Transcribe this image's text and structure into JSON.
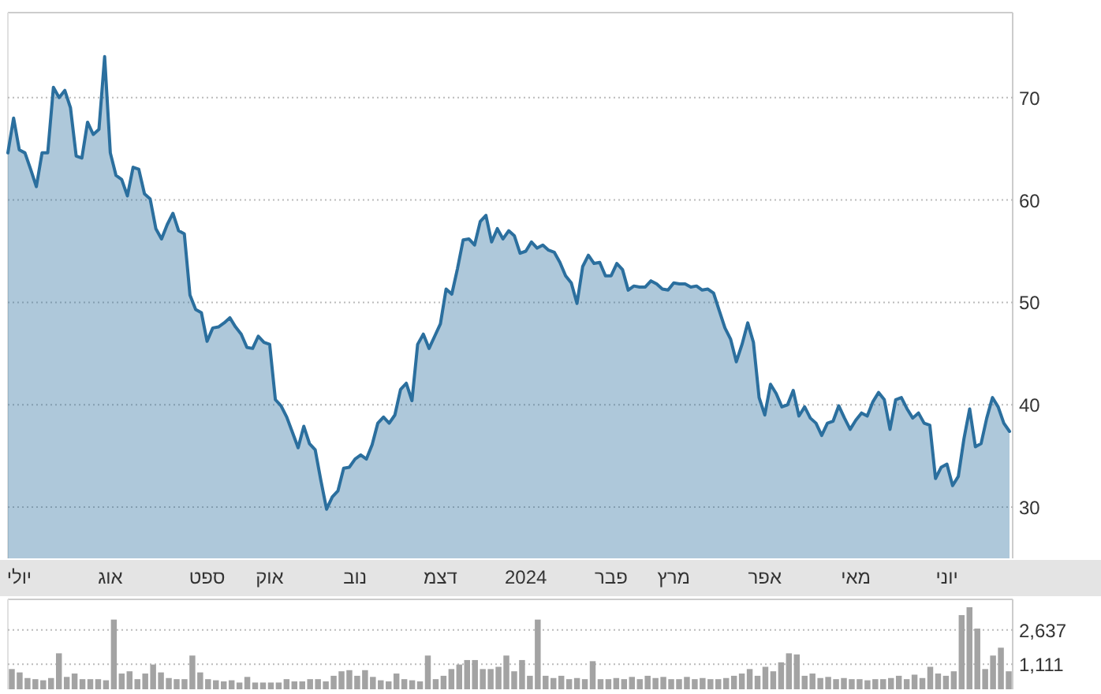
{
  "chart_data": [
    {
      "type": "area",
      "categories": [
        null,
        null,
        "יולי",
        null,
        null,
        null,
        null,
        null,
        null,
        null,
        null,
        null,
        null,
        null,
        null,
        null,
        null,
        null,
        "אוג",
        null,
        null,
        null,
        null,
        null,
        null,
        null,
        null,
        null,
        null,
        null,
        null,
        null,
        null,
        null,
        null,
        "ספט",
        null,
        null,
        null,
        null,
        null,
        null,
        null,
        null,
        null,
        null,
        "אוק",
        null,
        null,
        null,
        null,
        null,
        null,
        null,
        null,
        null,
        null,
        null,
        null,
        null,
        null,
        "נוב",
        null,
        null,
        null,
        null,
        null,
        null,
        null,
        null,
        null,
        null,
        null,
        null,
        null,
        null,
        "דצמ",
        null,
        null,
        null,
        null,
        null,
        null,
        null,
        null,
        null,
        null,
        null,
        null,
        null,
        null,
        "2024",
        null,
        null,
        null,
        null,
        null,
        null,
        null,
        null,
        null,
        null,
        null,
        null,
        null,
        null,
        "פבר",
        null,
        null,
        null,
        null,
        null,
        null,
        null,
        null,
        null,
        null,
        "מרץ",
        null,
        null,
        null,
        null,
        null,
        null,
        null,
        null,
        null,
        null,
        null,
        null,
        null,
        null,
        null,
        "אפר",
        null,
        null,
        null,
        null,
        null,
        null,
        null,
        null,
        null,
        null,
        null,
        null,
        null,
        null,
        null,
        "מאי",
        null,
        null,
        null,
        null,
        null,
        null,
        null,
        null,
        null,
        null,
        null,
        null,
        null,
        null,
        null,
        "יוני",
        null,
        null,
        null,
        null,
        null,
        null,
        null,
        null,
        null,
        null,
        null
      ],
      "series": [
        {
          "color": "#2b6f9e",
          "values": [
            64.6,
            68.0,
            64.9,
            64.6,
            63.0,
            61.3,
            64.6,
            64.6,
            71.0,
            70.0,
            70.7,
            69.0,
            64.3,
            64.1,
            67.6,
            66.4,
            66.9,
            74.0,
            64.6,
            62.4,
            62.0,
            60.4,
            63.2,
            63.0,
            60.6,
            60.1,
            57.2,
            56.2,
            57.6,
            58.7,
            57.0,
            56.7,
            50.7,
            49.3,
            49.0,
            46.2,
            47.5,
            47.6,
            48.0,
            48.5,
            47.6,
            46.9,
            45.6,
            45.5,
            46.7,
            46.1,
            45.9,
            40.5,
            39.9,
            38.8,
            37.3,
            35.8,
            37.9,
            36.2,
            35.6,
            32.6,
            29.8,
            31.0,
            31.6,
            33.8,
            33.9,
            34.7,
            35.1,
            34.7,
            36.1,
            38.2,
            38.8,
            38.2,
            39.0,
            41.5,
            42.1,
            40.4,
            45.9,
            46.9,
            45.5,
            46.7,
            47.9,
            51.3,
            50.8,
            53.3,
            56.1,
            56.2,
            55.6,
            57.9,
            58.5,
            55.9,
            57.2,
            56.2,
            57.0,
            56.5,
            54.8,
            55.0,
            55.9,
            55.3,
            55.6,
            55.1,
            54.9,
            53.9,
            52.6,
            51.9,
            49.9,
            53.5,
            54.6,
            53.8,
            53.9,
            52.6,
            52.6,
            53.8,
            53.2,
            51.2,
            51.6,
            51.5,
            51.5,
            52.1,
            51.8,
            51.3,
            51.2,
            51.9,
            51.8,
            51.8,
            51.5,
            51.6,
            51.2,
            51.3,
            50.9,
            49.2,
            47.5,
            46.4,
            44.2,
            45.9,
            48.0,
            46.1,
            40.7,
            39.0,
            42.0,
            41.1,
            39.8,
            40.0,
            41.4,
            38.9,
            39.8,
            38.7,
            38.2,
            37.0,
            38.2,
            38.4,
            39.9,
            38.7,
            37.6,
            38.5,
            39.2,
            38.9,
            40.3,
            41.2,
            40.5,
            37.6,
            40.5,
            40.7,
            39.6,
            38.7,
            39.2,
            38.2,
            38.0,
            32.8,
            33.9,
            34.2,
            32.1,
            33.0,
            36.7,
            39.6,
            35.9,
            36.2,
            38.7,
            40.7,
            39.8,
            38.2,
            37.4
          ]
        }
      ],
      "ylim": [
        25,
        78.3
      ],
      "yticks": [
        30,
        40,
        50,
        60,
        70
      ],
      "grid": "y"
    },
    {
      "type": "bar",
      "categories": [
        null,
        null,
        null,
        null,
        null,
        null,
        null,
        null,
        null,
        null,
        null,
        null,
        null,
        null,
        null,
        null,
        null,
        null,
        null,
        null,
        null,
        null,
        null,
        null,
        null,
        null,
        null,
        null,
        null,
        null,
        null,
        null,
        null,
        null,
        null,
        null,
        null,
        null,
        null,
        null,
        null,
        null,
        null,
        null,
        null,
        null,
        null,
        null,
        null,
        null,
        null,
        null,
        null,
        null,
        null,
        null,
        null,
        null,
        null,
        null,
        null,
        null,
        null,
        null,
        null,
        null,
        null,
        null,
        null,
        null,
        null,
        null,
        null,
        null,
        null,
        null,
        null,
        null,
        null,
        null,
        null,
        null,
        null,
        null,
        null,
        null,
        null,
        null,
        null,
        null,
        null,
        null,
        null,
        null,
        null,
        null,
        null,
        null,
        null,
        null,
        null,
        null,
        null,
        null,
        null,
        null,
        null,
        null,
        null,
        null,
        null,
        null,
        null,
        null,
        null,
        null,
        null,
        null,
        null,
        null,
        null,
        null,
        null,
        null,
        null,
        null,
        null,
        null
      ],
      "values": [
        900,
        750,
        500,
        450,
        400,
        500,
        1600,
        550,
        700,
        450,
        450,
        450,
        400,
        3100,
        700,
        800,
        450,
        700,
        1100,
        750,
        500,
        450,
        450,
        1500,
        750,
        450,
        400,
        350,
        400,
        300,
        550,
        300,
        300,
        300,
        300,
        450,
        350,
        350,
        450,
        450,
        350,
        600,
        800,
        850,
        600,
        850,
        550,
        400,
        350,
        700,
        450,
        400,
        350,
        1500,
        450,
        600,
        900,
        1100,
        1300,
        1300,
        900,
        900,
        1000,
        1500,
        800,
        1300,
        600,
        3100,
        600,
        500,
        600,
        450,
        500,
        450,
        1250,
        450,
        450,
        500,
        450,
        550,
        450,
        600,
        500,
        550,
        450,
        450,
        550,
        450,
        500,
        450,
        450,
        500,
        600,
        700,
        900,
        600,
        1000,
        800,
        1200,
        1600,
        1550,
        600,
        700,
        500,
        550,
        450,
        500,
        450,
        450,
        400,
        450,
        450,
        500,
        600,
        450,
        650,
        500,
        1000,
        700,
        600,
        800,
        3300,
        3650,
        2700,
        900,
        1500,
        1850,
        800
      ],
      "color": "#a3a3a3",
      "ylim": [
        0,
        4000
      ],
      "yticks": [
        {
          "value": 1111,
          "label": "1,111"
        },
        {
          "value": 2637,
          "label": "2,637"
        }
      ],
      "grid": "y",
      "tick_labels": "y"
    }
  ]
}
